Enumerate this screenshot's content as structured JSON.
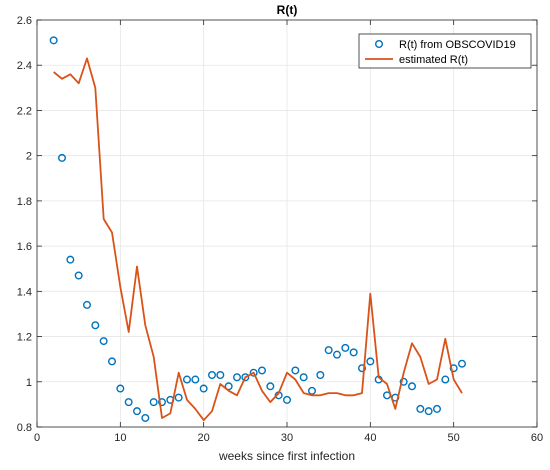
{
  "chart_data": {
    "type": "line",
    "title": "R(t)",
    "xlabel": "weeks since first infection",
    "ylabel": "",
    "xlim": [
      0,
      60
    ],
    "ylim": [
      0.8,
      2.6
    ],
    "xticks": [
      0,
      10,
      20,
      30,
      40,
      50,
      60
    ],
    "yticks": [
      0.8,
      1,
      1.2,
      1.4,
      1.6,
      1.8,
      2,
      2.2,
      2.4,
      2.6
    ],
    "xtick_labels": [
      "0",
      "10",
      "20",
      "30",
      "40",
      "50",
      "60"
    ],
    "ytick_labels": [
      "0.8",
      "1",
      "1.2",
      "1.4",
      "1.6",
      "1.8",
      "2",
      "2.2",
      "2.4",
      "2.6"
    ],
    "grid": true,
    "legend_position": "top-right",
    "series": [
      {
        "name": "R(t) from OBSCOVID19",
        "kind": "scatter",
        "color": "#0072BD",
        "x": [
          2,
          3,
          4,
          5,
          6,
          7,
          8,
          9,
          10,
          11,
          12,
          13,
          14,
          15,
          16,
          17,
          18,
          19,
          20,
          21,
          22,
          23,
          24,
          25,
          26,
          27,
          28,
          29,
          30,
          31,
          32,
          33,
          34,
          35,
          36,
          37,
          38,
          39,
          40,
          41,
          42,
          43,
          44,
          45,
          46,
          47,
          48,
          49,
          50,
          51
        ],
        "y": [
          2.51,
          1.99,
          1.54,
          1.47,
          1.34,
          1.25,
          1.18,
          1.09,
          0.97,
          0.91,
          0.87,
          0.84,
          0.91,
          0.91,
          0.92,
          0.93,
          1.01,
          1.01,
          0.97,
          1.03,
          1.03,
          0.98,
          1.02,
          1.02,
          1.04,
          1.05,
          0.98,
          0.94,
          0.92,
          1.05,
          1.02,
          0.96,
          1.03,
          1.14,
          1.12,
          1.15,
          1.13,
          1.06,
          1.09,
          1.01,
          0.94,
          0.93,
          1.0,
          0.98,
          0.88,
          0.87,
          0.88,
          1.01,
          1.06,
          1.08
        ]
      },
      {
        "name": "estimated R(t)",
        "kind": "line",
        "color": "#D95319",
        "x": [
          2,
          3,
          4,
          5,
          6,
          7,
          8,
          9,
          10,
          11,
          12,
          13,
          14,
          15,
          16,
          17,
          18,
          19,
          20,
          21,
          22,
          23,
          24,
          25,
          26,
          27,
          28,
          29,
          30,
          31,
          32,
          33,
          34,
          35,
          36,
          37,
          38,
          39,
          40,
          41,
          42,
          43,
          44,
          45,
          46,
          47,
          48,
          49,
          50,
          51
        ],
        "y": [
          2.37,
          2.34,
          2.36,
          2.32,
          2.43,
          2.3,
          1.72,
          1.66,
          1.42,
          1.22,
          1.51,
          1.25,
          1.11,
          0.84,
          0.86,
          1.04,
          0.92,
          0.88,
          0.83,
          0.87,
          0.99,
          0.96,
          0.94,
          1.02,
          1.04,
          0.96,
          0.91,
          0.95,
          1.04,
          1.01,
          0.95,
          0.94,
          0.94,
          0.95,
          0.95,
          0.94,
          0.94,
          0.95,
          1.39,
          1.02,
          0.99,
          0.88,
          1.04,
          1.17,
          1.11,
          0.99,
          1.01,
          1.19,
          1.01,
          0.95
        ]
      }
    ]
  }
}
